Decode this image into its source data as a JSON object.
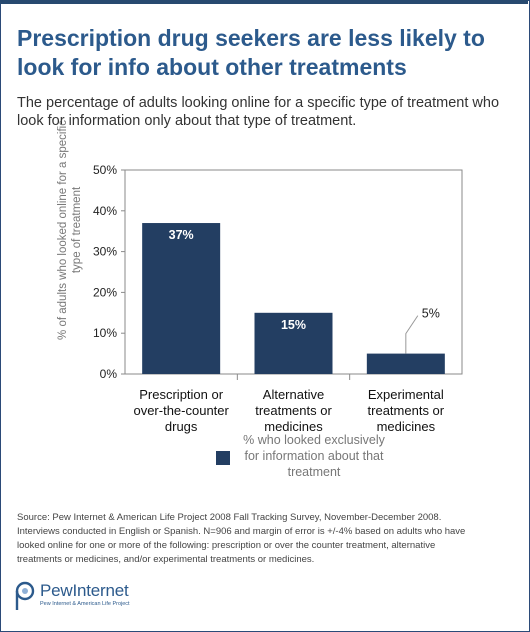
{
  "title": "Prescription drug seekers are less likely to look for info about other treatments",
  "subtitle": "The percentage of adults looking online for a specific type of treatment who look for information only about that type of treatment.",
  "chart_data": {
    "type": "bar",
    "ylabel": "% of adults who looked online for a specific type of treatment",
    "ylim": [
      0,
      50
    ],
    "yticks": [
      "0%",
      "10%",
      "20%",
      "30%",
      "40%",
      "50%"
    ],
    "grid": false,
    "legend_position": "bottom",
    "categories": [
      [
        "Prescription or",
        "over-the-counter",
        "drugs"
      ],
      [
        "Alternative",
        "treatments or",
        "medicines"
      ],
      [
        "Experimental",
        "treatments or",
        "medicines"
      ]
    ],
    "series": [
      {
        "name": "% who looked exclusively for information about that treatment",
        "name_lines": [
          "% who looked exclusively",
          "for information about that",
          "treatment"
        ],
        "color": "#233e62",
        "values": [
          37,
          15,
          5
        ],
        "labels": [
          "37%",
          "15%",
          "5%"
        ]
      }
    ]
  },
  "source": [
    "Source:  Pew Internet & American Life Project 2008 Fall Tracking Survey, November-December 2008.",
    "Interviews conducted in English or Spanish. N=906 and margin of error is +/-4% based on adults who have",
    "looked online for one or more of the following: prescription or over the counter treatment, alternative",
    "treatments or medicines, and/or experimental treatments or medicines."
  ],
  "logo": {
    "word": "PewInternet",
    "tagline": "Pew Internet & American Life Project"
  }
}
